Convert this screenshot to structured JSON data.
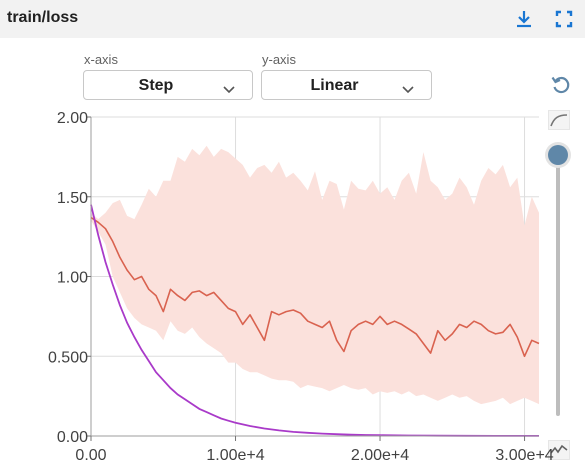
{
  "header": {
    "title": "train/loss",
    "download_icon": "download-icon",
    "fullscreen_icon": "fullscreen-icon"
  },
  "controls": {
    "xaxis_label": "x-axis",
    "xaxis_value": "Step",
    "yaxis_label": "y-axis",
    "yaxis_value": "Linear"
  },
  "side_icons": [
    "reset-icon",
    "smoothing-curve-icon",
    "slider-thumb",
    "chart-line-icon"
  ],
  "colors": {
    "series_main": "#d9624f",
    "band": "#fbe1dc",
    "series_fit": "#a93ac9",
    "grid": "#dddddd",
    "accent": "#1976d2"
  },
  "chart_data": {
    "type": "line",
    "title": "",
    "xlabel": "",
    "ylabel": "",
    "xlim": [
      0,
      31000
    ],
    "ylim": [
      0,
      2.0
    ],
    "xticks": [
      0,
      10000,
      20000,
      30000
    ],
    "xtick_labels": [
      "0.00",
      "1.00e+4",
      "2.00e+4",
      "3.00e+4"
    ],
    "yticks": [
      0,
      0.5,
      1.0,
      1.5,
      2.0
    ],
    "ytick_labels": [
      "0.00",
      "0.500",
      "1.00",
      "1.50",
      "2.00"
    ],
    "grid": true,
    "series": [
      {
        "x": [
          0,
          500,
          1000,
          1500,
          2000,
          2500,
          3000,
          3500,
          4000,
          4500,
          5000,
          5500,
          6000,
          6500,
          7000,
          7500,
          8000,
          8500,
          9000,
          9500,
          10000,
          10500,
          11000,
          11500,
          12000,
          12500,
          13000,
          13500,
          14000,
          14500,
          15000,
          15500,
          16000,
          16500,
          17000,
          17500,
          18000,
          18500,
          19000,
          19500,
          20000,
          20500,
          21000,
          21500,
          22000,
          22500,
          23000,
          23500,
          24000,
          24500,
          25000,
          25500,
          26000,
          26500,
          27000,
          27500,
          28000,
          28500,
          29000,
          29500,
          30000,
          30500,
          31000
        ],
        "y": [
          1.37,
          1.34,
          1.3,
          1.22,
          1.12,
          1.04,
          0.98,
          1.0,
          0.92,
          0.88,
          0.78,
          0.92,
          0.88,
          0.85,
          0.9,
          0.91,
          0.88,
          0.9,
          0.85,
          0.8,
          0.78,
          0.7,
          0.76,
          0.68,
          0.6,
          0.78,
          0.76,
          0.78,
          0.79,
          0.77,
          0.72,
          0.7,
          0.68,
          0.72,
          0.6,
          0.53,
          0.66,
          0.7,
          0.72,
          0.7,
          0.75,
          0.7,
          0.72,
          0.7,
          0.67,
          0.64,
          0.58,
          0.52,
          0.66,
          0.6,
          0.64,
          0.7,
          0.68,
          0.72,
          0.7,
          0.66,
          0.64,
          0.65,
          0.7,
          0.62,
          0.5,
          0.6,
          0.58
        ]
      },
      {
        "x": [
          0,
          500,
          1000,
          1500,
          2000,
          2500,
          3000,
          3500,
          4000,
          4500,
          5000,
          5500,
          6000,
          6500,
          7000,
          7500,
          8000,
          8500,
          9000,
          9500,
          10000,
          10500,
          11000,
          11500,
          12000,
          12500,
          13000,
          13500,
          14000,
          14500,
          15000,
          15500,
          16000,
          16500,
          17000,
          17500,
          18000,
          18500,
          19000,
          19500,
          20000,
          20500,
          21000,
          21500,
          22000,
          22500,
          23000,
          23500,
          24000,
          24500,
          25000,
          25500,
          26000,
          26500,
          27000,
          27500,
          28000,
          28500,
          29000,
          29500,
          30000,
          30500,
          31000
        ],
        "y_upper": [
          1.4,
          1.36,
          1.4,
          1.46,
          1.48,
          1.38,
          1.36,
          1.45,
          1.55,
          1.5,
          1.6,
          1.6,
          1.75,
          1.72,
          1.8,
          1.76,
          1.82,
          1.75,
          1.8,
          1.78,
          1.74,
          1.7,
          1.62,
          1.68,
          1.7,
          1.65,
          1.72,
          1.62,
          1.65,
          1.6,
          1.54,
          1.66,
          1.48,
          1.6,
          1.58,
          1.42,
          1.6,
          1.55,
          1.54,
          1.6,
          1.52,
          1.56,
          1.48,
          1.6,
          1.65,
          1.52,
          1.78,
          1.6,
          1.56,
          1.48,
          1.52,
          1.62,
          1.56,
          1.45,
          1.6,
          1.68,
          1.64,
          1.7,
          1.56,
          1.62,
          1.32,
          1.5,
          1.4
        ],
        "y_lower": [
          1.35,
          1.28,
          1.2,
          1.0,
          0.9,
          0.8,
          0.74,
          0.7,
          0.68,
          0.66,
          0.6,
          0.72,
          0.66,
          0.64,
          0.68,
          0.62,
          0.58,
          0.55,
          0.52,
          0.46,
          0.46,
          0.42,
          0.4,
          0.4,
          0.38,
          0.36,
          0.35,
          0.35,
          0.34,
          0.3,
          0.32,
          0.31,
          0.3,
          0.28,
          0.3,
          0.32,
          0.3,
          0.29,
          0.3,
          0.26,
          0.28,
          0.27,
          0.28,
          0.26,
          0.28,
          0.25,
          0.26,
          0.24,
          0.22,
          0.24,
          0.26,
          0.24,
          0.25,
          0.22,
          0.2,
          0.21,
          0.22,
          0.24,
          0.2,
          0.22,
          0.24,
          0.22,
          0.2
        ]
      },
      {
        "x": [
          0,
          500,
          1000,
          1500,
          2000,
          2500,
          3000,
          3500,
          4000,
          4500,
          5000,
          5500,
          6000,
          6500,
          7000,
          7500,
          8000,
          8500,
          9000,
          9500,
          10000,
          11000,
          12000,
          13000,
          14000,
          15000,
          16000,
          17000,
          18000,
          19000,
          20000,
          22000,
          24000,
          26000,
          28000,
          30000,
          31000
        ],
        "y": [
          1.45,
          1.26,
          1.09,
          0.95,
          0.82,
          0.71,
          0.62,
          0.54,
          0.47,
          0.4,
          0.35,
          0.3,
          0.26,
          0.23,
          0.2,
          0.17,
          0.15,
          0.13,
          0.11,
          0.096,
          0.083,
          0.063,
          0.047,
          0.035,
          0.026,
          0.02,
          0.015,
          0.011,
          0.008,
          0.006,
          0.005,
          0.003,
          0.002,
          0.001,
          0.0008,
          0.0005,
          0.0004
        ]
      }
    ]
  }
}
